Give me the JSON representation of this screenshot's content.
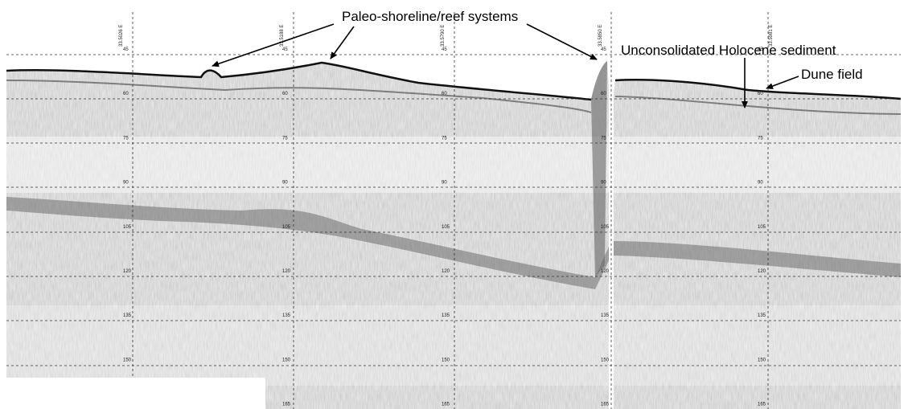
{
  "annotations": {
    "paleo": "Paleo-shoreline/reef systems",
    "holocene": "Unconsolidated Holocene sediment",
    "dune": "Dune field"
  },
  "depth_labels": [
    "45",
    "60",
    "75",
    "90",
    "105",
    "120",
    "135",
    "150",
    "165"
  ],
  "longitude_labels": [
    "33.5026 E",
    "33.5188 E",
    "33.5790 E",
    "33.5850 E",
    "33.5981 E"
  ]
}
